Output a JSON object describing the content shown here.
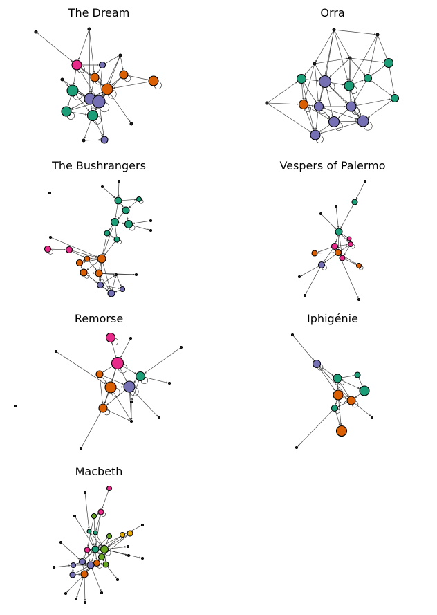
{
  "palette": {
    "teal": "#1b9e77",
    "orange": "#d95f02",
    "purple": "#7570b3",
    "magenta": "#e7298a",
    "green": "#66a61e",
    "gold": "#e6ab02",
    "dark": "#222222"
  },
  "panels": [
    {
      "title": "The Dream"
    },
    {
      "title": "Orra"
    },
    {
      "title": "The Bushrangers"
    },
    {
      "title": "Vespers of Palermo"
    },
    {
      "title": "Remorse"
    },
    {
      "title": "Iphigénie"
    },
    {
      "title": "Macbeth"
    }
  ]
}
